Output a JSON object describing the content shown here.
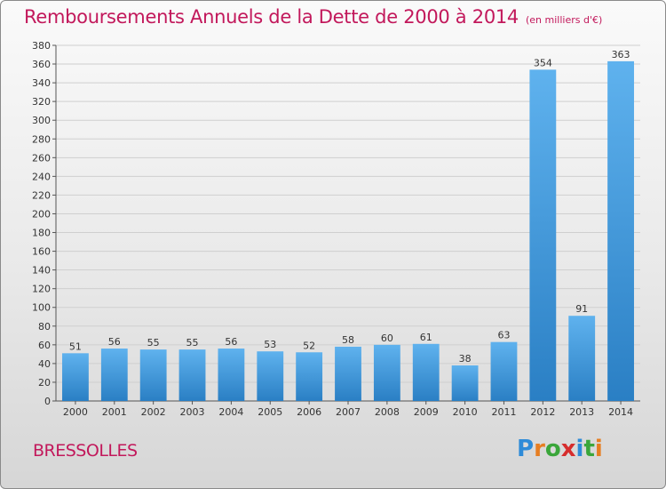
{
  "header": {
    "title": "Remboursements Annuels de la Dette de 2000 à 2014",
    "unit": "(en milliers d'€)"
  },
  "commune": "BRESSOLLES",
  "logo": {
    "text": "Proxiti",
    "letters": [
      "P",
      "r",
      "o",
      "x",
      "i",
      "t",
      "i"
    ],
    "colors": [
      "#2e8bd8",
      "#e67e22",
      "#3aa63a",
      "#d62d2d",
      "#2e8bd8",
      "#3aa63a",
      "#e67e22"
    ]
  },
  "colors": {
    "bar_light": "#5fb2ee",
    "bar_dark": "#2a7fc4",
    "grid": "#cfcfcf",
    "title": "#c2185b"
  },
  "chart_data": {
    "type": "bar",
    "title": "Remboursements Annuels de la Dette de 2000 à 2014",
    "xlabel": "",
    "ylabel": "",
    "ylim": [
      0,
      380
    ],
    "ytick_step": 20,
    "grid": true,
    "categories": [
      "2000",
      "2001",
      "2002",
      "2003",
      "2004",
      "2005",
      "2006",
      "2007",
      "2008",
      "2009",
      "2010",
      "2011",
      "2012",
      "2013",
      "2014"
    ],
    "values": [
      51,
      56,
      55,
      55,
      56,
      53,
      52,
      58,
      60,
      61,
      38,
      63,
      354,
      91,
      363
    ]
  }
}
